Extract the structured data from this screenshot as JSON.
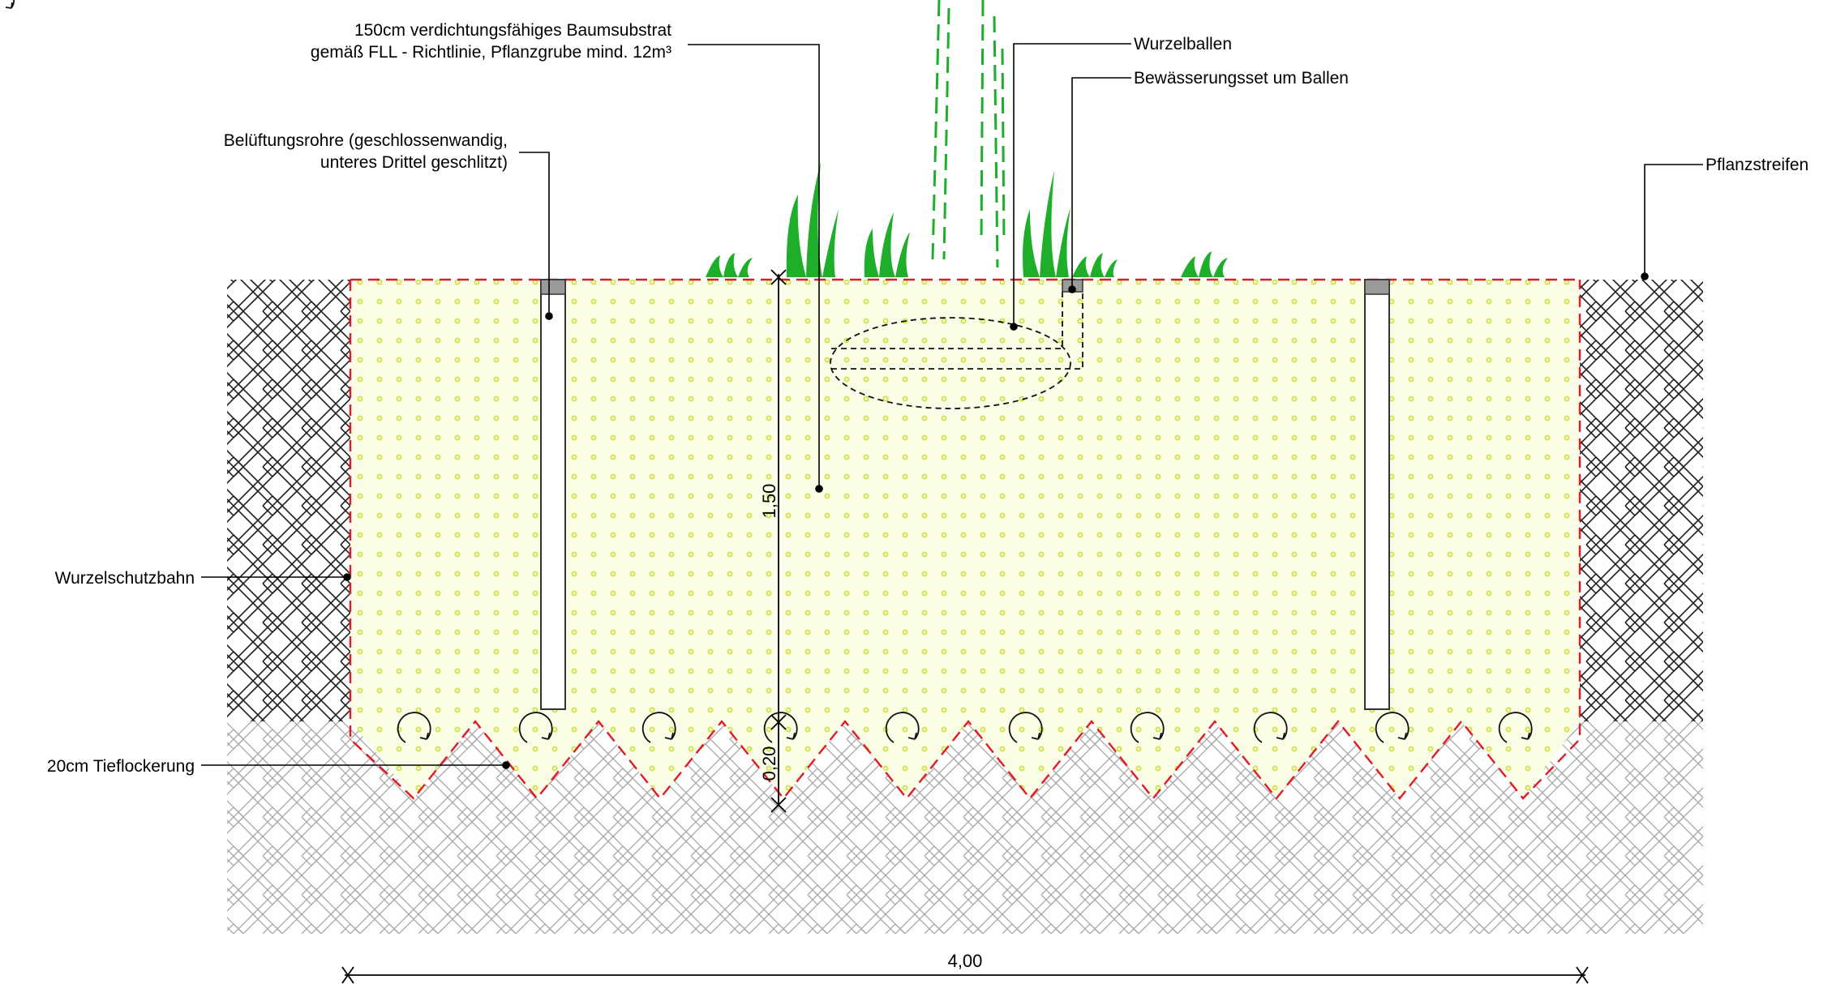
{
  "labels": {
    "substrate_line1": "150cm verdichtungsfähiges Baumsubstrat",
    "substrate_line2": "gemäß FLL - Richtlinie, Pflanzgrube mind. 12m³",
    "aeration_line1": "Belüftungsrohre (geschlossenwandig,",
    "aeration_line2": "unteres Drittel geschlitzt)",
    "root_ball": "Wurzelballen",
    "irrigation": "Bewässerungsset um Ballen",
    "planting_strip": "Pflanzstreifen",
    "root_barrier": "Wurzelschutzbahn",
    "deep_loosening": "20cm Tieflockerung"
  },
  "dimensions": {
    "depth": "1,50",
    "loosening_depth": "0,20",
    "width": "4,00"
  },
  "colors": {
    "barrier_red": "#e01b24",
    "grass_green": "#1fae2a",
    "substrate_fill": "#fbfde6",
    "substrate_dot": "#c9e12c",
    "soil_hatch": "#222222",
    "subsoil_hatch": "#a8a8a8",
    "pipe_cap": "#9a9a9a"
  }
}
